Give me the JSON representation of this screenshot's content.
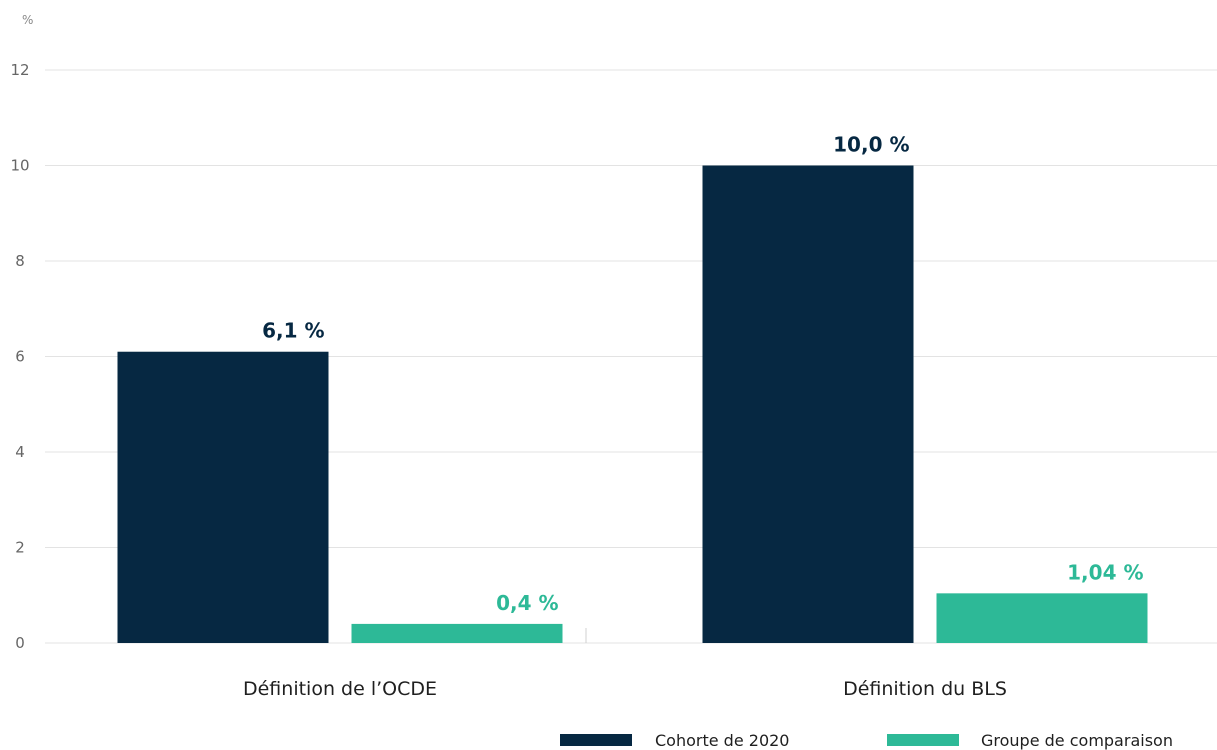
{
  "chart_data": {
    "type": "bar",
    "y_unit": "%",
    "categories": [
      "Définition de l’OCDE",
      "Définition du BLS"
    ],
    "series": [
      {
        "name": "Cohorte de 2020",
        "color": "#062842",
        "values": [
          6.1,
          10.0
        ],
        "labels": [
          "6,1 %",
          "10,0 %"
        ]
      },
      {
        "name": "Groupe de comparaison",
        "color": "#2db997",
        "values": [
          0.4,
          1.04
        ],
        "labels": [
          "0,4 %",
          "1,04 %"
        ]
      }
    ],
    "ylim": [
      0,
      12
    ],
    "yticks": [
      0,
      2,
      4,
      6,
      8,
      10,
      12
    ],
    "grid": true,
    "legend_position": "bottom-right"
  }
}
